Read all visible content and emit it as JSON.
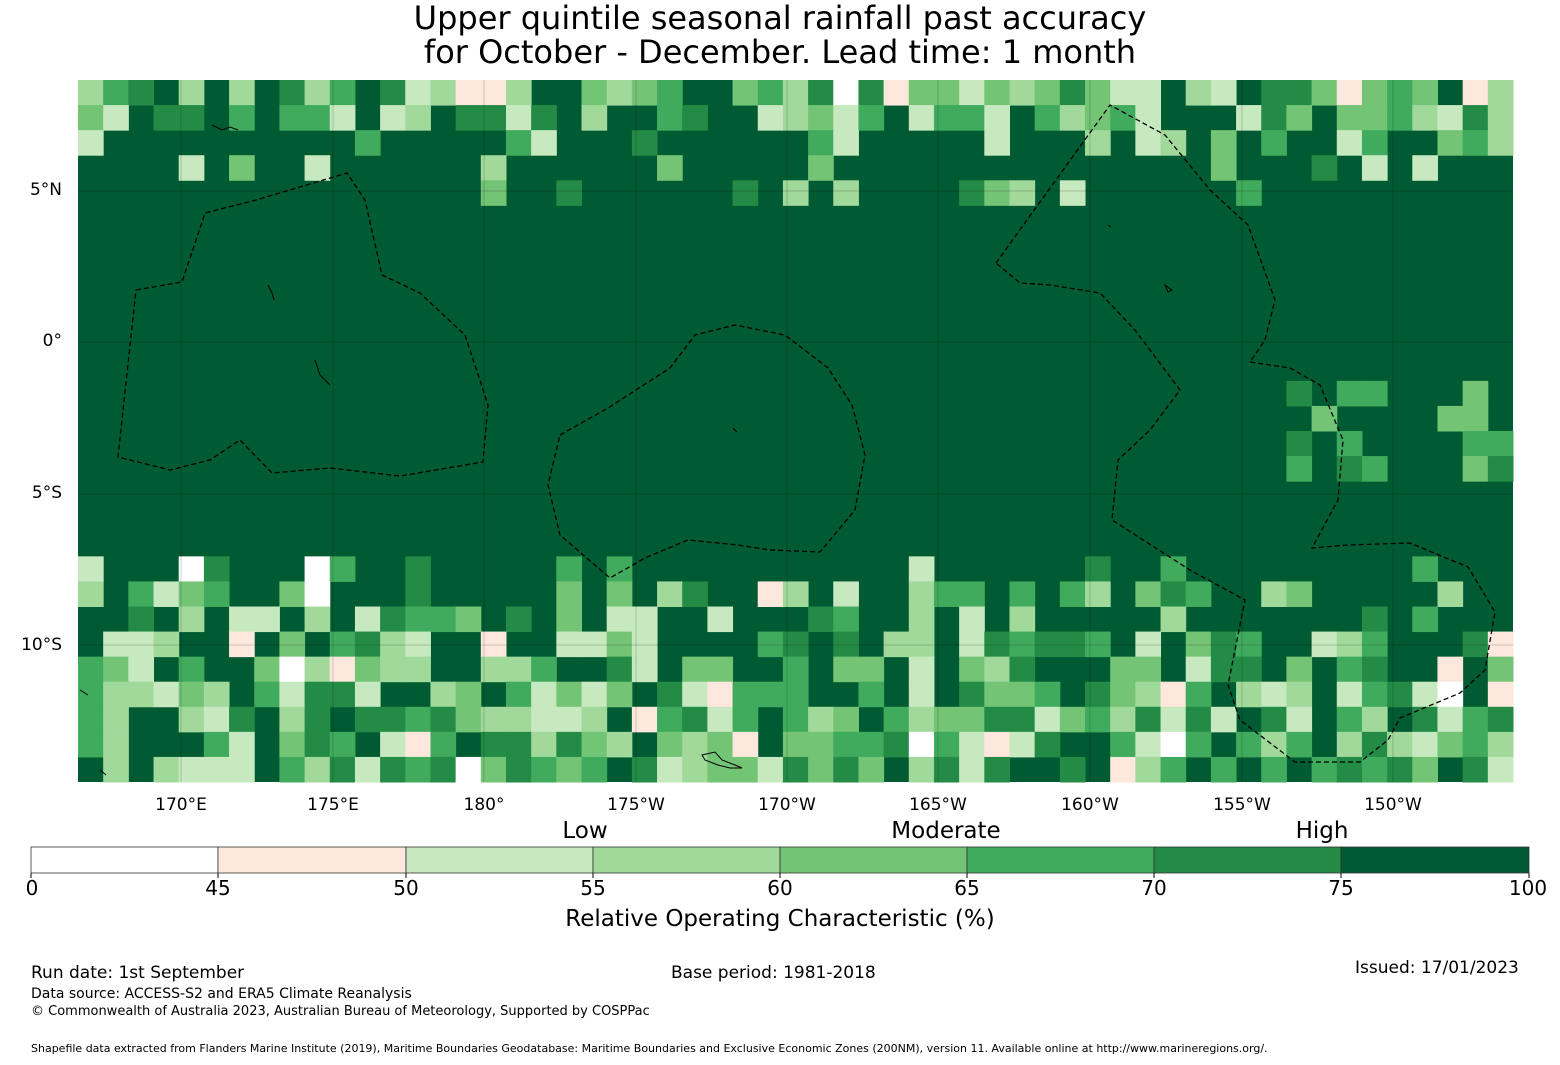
{
  "title_line1": "Upper quintile seasonal rainfall past accuracy",
  "title_line2": "for October - December. Lead time: 1 month",
  "map": {
    "lat_labels": [
      "5°N",
      "0°",
      "5°S",
      "10°S"
    ],
    "lon_labels": [
      "170°E",
      "175°E",
      "180°",
      "175°W",
      "170°W",
      "165°W",
      "160°W",
      "155°W",
      "150°W"
    ]
  },
  "colorbar": {
    "categories": [
      "Low",
      "Moderate",
      "High"
    ],
    "ticks": [
      "0",
      "45",
      "50",
      "55",
      "60",
      "65",
      "70",
      "75",
      "100"
    ],
    "colors": [
      "#ffffff",
      "#fee8de",
      "#c7e9c0",
      "#a1d99b",
      "#74c476",
      "#41ab5d",
      "#238b45",
      "#005a32"
    ],
    "title": "Relative Operating Characteristic (%)"
  },
  "footer": {
    "run_date": "Run date: 1st September",
    "base_period": "Base period: 1981-2018",
    "issued": "Issued: 17/01/2023",
    "data_source": "Data source: ACCESS-S2 and ERA5 Climate Reanalysis",
    "copyright": "© Commonwealth of Australia 2023, Australian Bureau of Meteorology, Supported by COSPPac",
    "shapefile": "Shapefile data extracted from Flanders Marine Institute (2019), Maritime Boundaries Geodatabase: Maritime Boundaries and Exclusive Economic Zones (200NM), version 11. Available online at http://www.marineregions.org/."
  }
}
